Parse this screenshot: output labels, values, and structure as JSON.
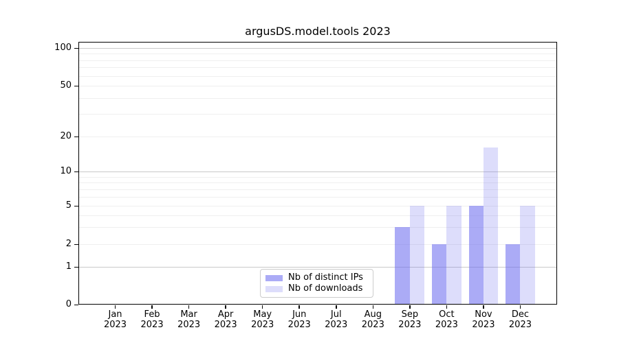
{
  "chart_data": {
    "type": "bar",
    "title": "argusDS.model.tools 2023",
    "categories": [
      "Jan 2023",
      "Feb 2023",
      "Mar 2023",
      "Apr 2023",
      "May 2023",
      "Jun 2023",
      "Jul 2023",
      "Aug 2023",
      "Sep 2023",
      "Oct 2023",
      "Nov 2023",
      "Dec 2023"
    ],
    "series": [
      {
        "name": "Nb of distinct IPs",
        "color": "rgba(102,102,238,0.55)",
        "values": [
          0,
          0,
          0,
          0,
          0,
          0,
          0,
          0,
          3,
          2,
          5,
          2
        ]
      },
      {
        "name": "Nb of downloads",
        "color": "rgba(102,102,238,0.22)",
        "values": [
          0,
          0,
          0,
          0,
          0,
          0,
          0,
          0,
          5,
          5,
          16,
          5
        ]
      }
    ],
    "yticks": [
      0,
      1,
      2,
      5,
      10,
      20,
      50,
      100
    ],
    "ylim": [
      0,
      112
    ],
    "yscale": "symlog (log above 1, linear 0-1)",
    "xlabel": "",
    "ylabel": "",
    "grid": "horizontal, major and minor",
    "legend_position": "inside, bottom center",
    "colors": {
      "grid_major": "#c9c9c9",
      "grid_minor": "#efefef",
      "spine": "#000000",
      "text": "#000000",
      "background": "#ffffff"
    }
  }
}
